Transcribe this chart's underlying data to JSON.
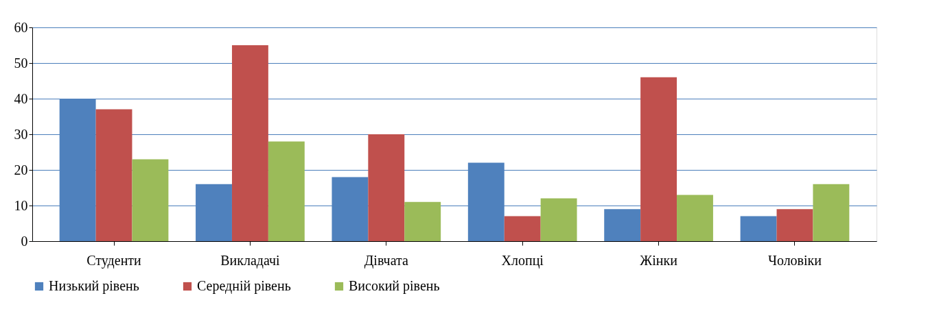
{
  "chart_data": {
    "type": "bar",
    "categories": [
      "Студенти",
      "Викладачі",
      "Дівчата",
      "Хлопці",
      "Жінки",
      "Чоловіки"
    ],
    "series": [
      {
        "name": "Низький рівень",
        "color": "#4f81bd",
        "values": [
          40,
          16,
          18,
          22,
          9,
          7
        ]
      },
      {
        "name": "Середній рівень",
        "color": "#c0504d",
        "values": [
          37,
          55,
          30,
          7,
          46,
          9
        ]
      },
      {
        "name": "Високий рівень",
        "color": "#9bbb59",
        "values": [
          23,
          28,
          11,
          12,
          13,
          16
        ]
      }
    ],
    "ylim": [
      0,
      60
    ],
    "yticks": [
      0,
      10,
      20,
      30,
      40,
      50,
      60
    ],
    "grid": "y",
    "legend": "bottom"
  }
}
